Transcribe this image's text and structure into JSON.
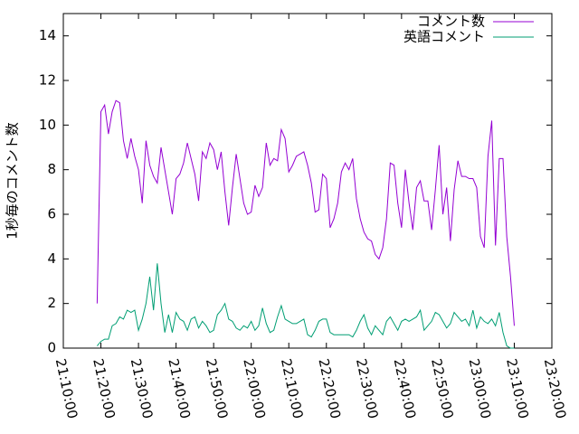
{
  "chart_data": {
    "type": "line",
    "y_label": "1秒毎のコメント数",
    "x": [
      "21:19:00",
      "21:20:00",
      "21:21:00",
      "21:22:00",
      "21:23:00",
      "21:24:00",
      "21:25:00",
      "21:26:00",
      "21:27:00",
      "21:28:00",
      "21:29:00",
      "21:30:00",
      "21:31:00",
      "21:32:00",
      "21:33:00",
      "21:34:00",
      "21:35:00",
      "21:36:00",
      "21:37:00",
      "21:38:00",
      "21:39:00",
      "21:40:00",
      "21:41:00",
      "21:42:00",
      "21:43:00",
      "21:44:00",
      "21:45:00",
      "21:46:00",
      "21:47:00",
      "21:48:00",
      "21:49:00",
      "21:50:00",
      "21:51:00",
      "21:52:00",
      "21:53:00",
      "21:54:00",
      "21:55:00",
      "21:56:00",
      "21:57:00",
      "21:58:00",
      "21:59:00",
      "22:00:00",
      "22:01:00",
      "22:02:00",
      "22:03:00",
      "22:04:00",
      "22:05:00",
      "22:06:00",
      "22:07:00",
      "22:08:00",
      "22:09:00",
      "22:10:00",
      "22:11:00",
      "22:12:00",
      "22:13:00",
      "22:14:00",
      "22:15:00",
      "22:16:00",
      "22:17:00",
      "22:18:00",
      "22:19:00",
      "22:20:00",
      "22:21:00",
      "22:22:00",
      "22:23:00",
      "22:24:00",
      "22:25:00",
      "22:26:00",
      "22:27:00",
      "22:28:00",
      "22:29:00",
      "22:30:00",
      "22:31:00",
      "22:32:00",
      "22:33:00",
      "22:34:00",
      "22:35:00",
      "22:36:00",
      "22:37:00",
      "22:38:00",
      "22:39:00",
      "22:40:00",
      "22:41:00",
      "22:42:00",
      "22:43:00",
      "22:44:00",
      "22:45:00",
      "22:46:00",
      "22:47:00",
      "22:48:00",
      "22:49:00",
      "22:50:00",
      "22:51:00",
      "22:52:00",
      "22:53:00",
      "22:54:00",
      "22:55:00",
      "22:56:00",
      "22:57:00",
      "22:58:00",
      "22:59:00",
      "23:00:00",
      "23:01:00",
      "23:02:00",
      "23:03:00",
      "23:04:00",
      "23:05:00",
      "23:06:00",
      "23:07:00",
      "23:08:00",
      "23:09:00",
      "23:10:00"
    ],
    "series": [
      {
        "name": "コメント数",
        "color": "#9400d3",
        "values": [
          2.0,
          10.6,
          10.9,
          9.6,
          10.6,
          11.1,
          11.0,
          9.3,
          8.5,
          9.4,
          8.6,
          8.0,
          6.5,
          9.3,
          8.2,
          7.7,
          7.4,
          9.0,
          8.0,
          7.0,
          6.0,
          7.6,
          7.8,
          8.3,
          9.2,
          8.5,
          7.8,
          6.6,
          8.8,
          8.5,
          9.2,
          8.9,
          8.0,
          8.8,
          7.0,
          5.5,
          7.2,
          8.7,
          7.6,
          6.5,
          6.0,
          6.1,
          7.3,
          6.8,
          7.2,
          9.2,
          8.2,
          8.5,
          8.4,
          9.8,
          9.4,
          7.9,
          8.2,
          8.6,
          8.7,
          8.8,
          8.2,
          7.4,
          6.1,
          6.2,
          7.8,
          7.6,
          5.4,
          5.8,
          6.5,
          7.9,
          8.3,
          8.0,
          8.5,
          6.7,
          5.8,
          5.2,
          4.9,
          4.8,
          4.2,
          4.0,
          4.5,
          5.8,
          8.3,
          8.2,
          6.5,
          5.4,
          8.0,
          6.5,
          5.3,
          7.2,
          7.5,
          6.6,
          6.6,
          5.3,
          7.1,
          9.1,
          6.0,
          7.2,
          4.8,
          7.1,
          8.4,
          7.7,
          7.7,
          7.6,
          7.6,
          7.2,
          5.0,
          4.5,
          8.6,
          10.2,
          4.6,
          8.5,
          8.5,
          5.0,
          3.2,
          1.0
        ]
      },
      {
        "name": "英語コメント",
        "color": "#009e73",
        "values": [
          0.1,
          0.3,
          0.4,
          0.4,
          1.0,
          1.1,
          1.4,
          1.3,
          1.7,
          1.6,
          1.7,
          0.8,
          1.3,
          2.0,
          3.2,
          1.7,
          3.8,
          2.0,
          0.7,
          1.5,
          0.7,
          1.6,
          1.3,
          1.2,
          0.8,
          1.3,
          1.4,
          0.9,
          1.2,
          1.0,
          0.7,
          0.8,
          1.5,
          1.7,
          2.0,
          1.3,
          1.2,
          0.9,
          0.8,
          1.0,
          0.9,
          1.2,
          0.8,
          1.0,
          1.8,
          1.1,
          0.7,
          0.8,
          1.4,
          1.9,
          1.3,
          1.2,
          1.1,
          1.1,
          1.2,
          1.3,
          0.6,
          0.5,
          0.8,
          1.2,
          1.3,
          1.3,
          0.7,
          0.6,
          0.6,
          0.6,
          0.6,
          0.6,
          0.5,
          0.8,
          1.2,
          1.5,
          0.9,
          0.6,
          1.0,
          0.8,
          0.6,
          1.2,
          1.4,
          1.1,
          0.8,
          1.2,
          1.3,
          1.2,
          1.3,
          1.4,
          1.7,
          0.8,
          1.0,
          1.2,
          1.6,
          1.5,
          1.2,
          0.9,
          1.1,
          1.6,
          1.4,
          1.2,
          1.3,
          1.0,
          1.7,
          0.9,
          1.4,
          1.2,
          1.1,
          1.3,
          1.0,
          1.6,
          0.7,
          0.1,
          0.0,
          0.0
        ]
      }
    ],
    "xlim": [
      "21:10:00",
      "23:20:00"
    ],
    "xticks": [
      "21:10:00",
      "21:20:00",
      "21:30:00",
      "21:40:00",
      "21:50:00",
      "22:00:00",
      "22:10:00",
      "22:20:00",
      "22:30:00",
      "22:40:00",
      "22:50:00",
      "23:00:00",
      "23:10:00",
      "23:20:00"
    ],
    "ylim": [
      0,
      15
    ],
    "yticks": [
      0,
      2,
      4,
      6,
      8,
      10,
      12,
      14
    ],
    "legend": "top-right"
  }
}
